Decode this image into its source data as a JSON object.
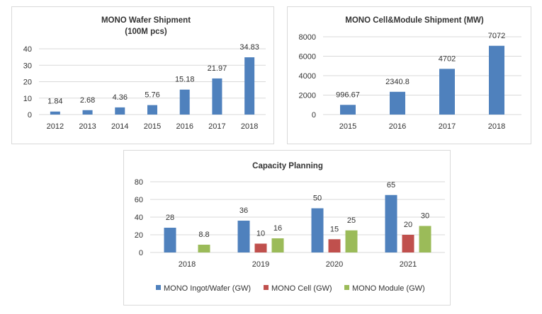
{
  "charts": [
    {
      "chart_data": {
        "type": "bar",
        "title": "MONO Wafer Shipment",
        "subtitle": "(100M pcs)",
        "categories": [
          "2012",
          "2013",
          "2014",
          "2015",
          "2016",
          "2017",
          "2018"
        ],
        "values": [
          1.84,
          2.68,
          4.36,
          5.76,
          15.18,
          21.97,
          34.83
        ],
        "data_labels": [
          "1.84",
          "2.68",
          "4.36",
          "5.76",
          "15.18",
          "21.97",
          "34.83"
        ],
        "ylim": [
          0,
          40
        ],
        "yticks": [
          0,
          10,
          20,
          30,
          40
        ],
        "grid": true,
        "color": "#4f81bd"
      }
    },
    {
      "chart_data": {
        "type": "bar",
        "title": "MONO Cell&Module  Shipment  (MW)",
        "categories": [
          "2015",
          "2016",
          "2017",
          "2018"
        ],
        "values": [
          996.67,
          2340.8,
          4702,
          7072
        ],
        "data_labels": [
          "996.67",
          "2340.8",
          "4702",
          "7072"
        ],
        "ylim": [
          0,
          8000
        ],
        "yticks": [
          0,
          2000,
          4000,
          6000,
          8000
        ],
        "grid": true,
        "color": "#4f81bd"
      }
    },
    {
      "chart_data": {
        "type": "bar",
        "title": "Capacity Planning",
        "categories": [
          "2018",
          "2019",
          "2020",
          "2021"
        ],
        "series": [
          {
            "name": "MONO Ingot/Wafer (GW)",
            "values": [
              28,
              36,
              50,
              65
            ],
            "data_labels": [
              "28",
              "36",
              "50",
              "65"
            ],
            "color": "#4f81bd"
          },
          {
            "name": "MONO Cell (GW)",
            "values": [
              null,
              10,
              15,
              20
            ],
            "data_labels": [
              "",
              "10",
              "15",
              "20"
            ],
            "color": "#c0504d"
          },
          {
            "name": "MONO Module (GW)",
            "values": [
              8.8,
              16,
              25,
              30
            ],
            "data_labels": [
              "8.8",
              "16",
              "25",
              "30"
            ],
            "color": "#9bbb59"
          }
        ],
        "ylim": [
          0,
          80
        ],
        "yticks": [
          0,
          20,
          40,
          60,
          80
        ],
        "grid": true,
        "legend": "bottom"
      }
    }
  ]
}
